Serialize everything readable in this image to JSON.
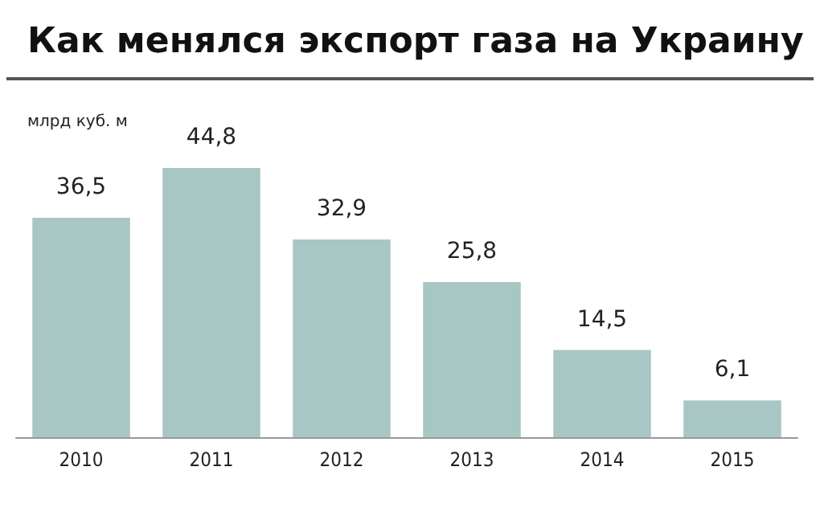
{
  "chart_data": {
    "type": "bar",
    "title": "Как менялся экспорт газа на Украину",
    "ylabel": "млрд куб. м",
    "categories": [
      "2010",
      "2011",
      "2012",
      "2013",
      "2014",
      "2015"
    ],
    "values": [
      36.5,
      44.8,
      32.9,
      25.8,
      14.5,
      6.1
    ],
    "value_labels": [
      "36,5",
      "44,8",
      "32,9",
      "25,8",
      "14,5",
      "6,1"
    ],
    "color": "#a7c6c4",
    "tick_labels": "x"
  }
}
